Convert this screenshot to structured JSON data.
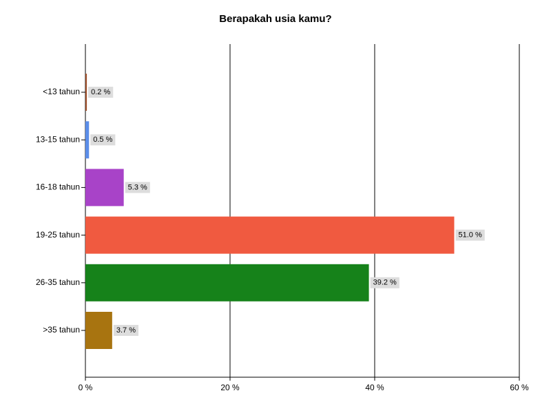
{
  "chart_data": {
    "type": "bar",
    "orientation": "horizontal",
    "title": "Berapakah usia kamu?",
    "categories": [
      "<13 tahun",
      "13-15 tahun",
      "16-18 tahun",
      "19-25 tahun",
      "26-35 tahun",
      ">35 tahun"
    ],
    "values": [
      0.2,
      0.5,
      5.3,
      51.0,
      39.2,
      3.7
    ],
    "value_labels": [
      "0.2 %",
      "0.5 %",
      "5.3 %",
      "51.0 %",
      "39.2 %",
      "3.7 %"
    ],
    "colors": [
      "#a0522d",
      "#5b8de8",
      "#a843c8",
      "#f05a40",
      "#16821a",
      "#a87410"
    ],
    "xlim": [
      0,
      60
    ],
    "xticks": [
      {
        "value": 0,
        "label": "0 %"
      },
      {
        "value": 20,
        "label": "20 %"
      },
      {
        "value": 40,
        "label": "40 %"
      },
      {
        "value": 60,
        "label": "60 %"
      }
    ],
    "grid": true
  }
}
